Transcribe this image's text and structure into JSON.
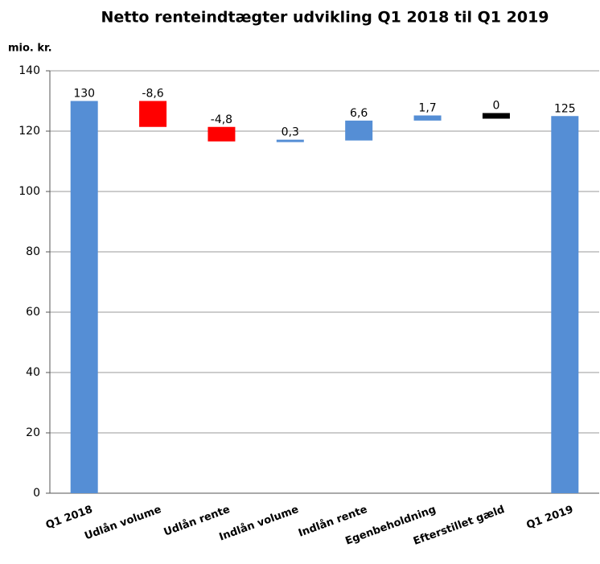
{
  "chart_data": {
    "type": "waterfall",
    "title": "Netto renteindtægter udvikling Q1 2018 til Q1 2019",
    "y_label": "mio. kr.",
    "categories": [
      "Q1 2018",
      "Udlån volume",
      "Udlån rente",
      "Indlån volume",
      "Indlån rente",
      "Egenbeholdning",
      "Efterstillet gæld",
      "Q1 2019"
    ],
    "values": [
      130,
      -8.6,
      -4.8,
      0.3,
      6.6,
      1.7,
      0,
      125
    ],
    "value_labels": [
      "130",
      "-8,6",
      "-4,8",
      "0,3",
      "6,6",
      "1,7",
      "0",
      "125"
    ],
    "colors": {
      "total": "#558ed5",
      "increase": "#558ed5",
      "decrease": "#ff0000",
      "zero": "#000000"
    },
    "ylim": [
      0,
      140
    ],
    "yticks": [
      0,
      20,
      40,
      60,
      80,
      100,
      120,
      140
    ],
    "grid": true
  }
}
